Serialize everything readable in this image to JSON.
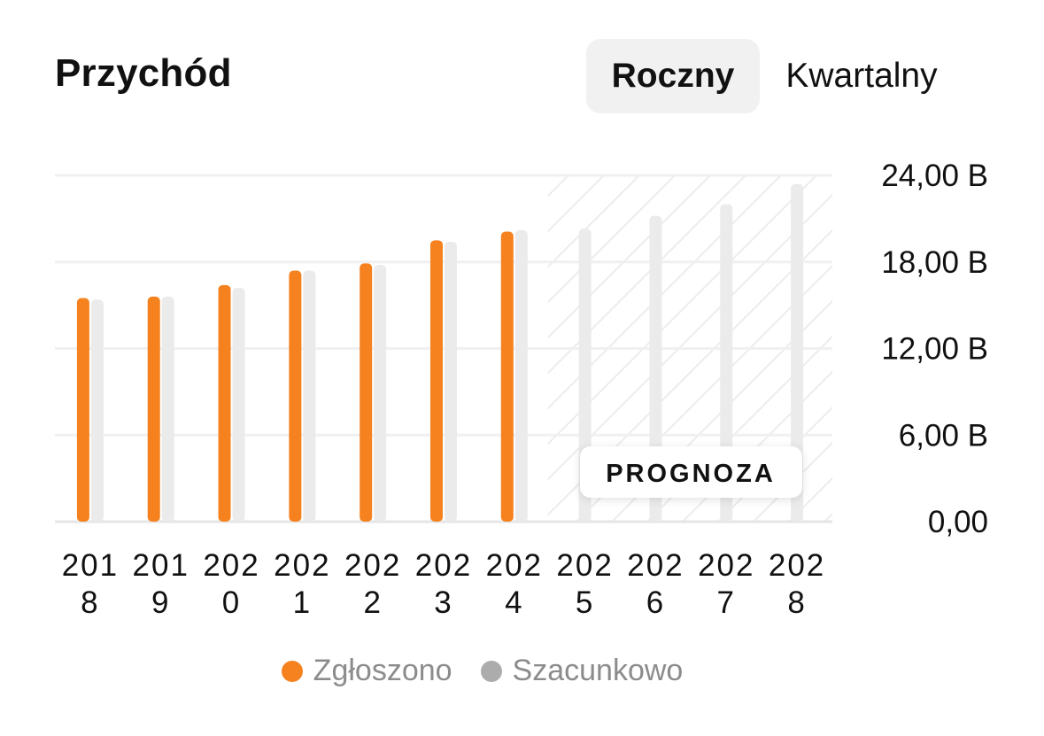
{
  "header": {
    "title": "Przychód",
    "tabs": [
      {
        "label": "Roczny",
        "active": true
      },
      {
        "label": "Kwartalny",
        "active": false
      }
    ]
  },
  "forecast_label": "PROGNOZA",
  "legend": [
    {
      "label": "Zgłoszono",
      "color": "#f5821f"
    },
    {
      "label": "Szacunkowo",
      "color": "#acacac"
    }
  ],
  "chart_data": {
    "type": "bar",
    "categories": [
      "2018",
      "2019",
      "2020",
      "2021",
      "2022",
      "2023",
      "2024",
      "2025",
      "2026",
      "2027",
      "2028"
    ],
    "category_tick_labels": [
      [
        "201",
        "8"
      ],
      [
        "201",
        "9"
      ],
      [
        "202",
        "0"
      ],
      [
        "202",
        "1"
      ],
      [
        "202",
        "2"
      ],
      [
        "202",
        "3"
      ],
      [
        "202",
        "4"
      ],
      [
        "202",
        "5"
      ],
      [
        "202",
        "6"
      ],
      [
        "202",
        "7"
      ],
      [
        "202",
        "8"
      ]
    ],
    "series": [
      {
        "name": "Zgłoszono",
        "color": "#f5821f",
        "values": [
          15.5,
          15.6,
          16.4,
          17.4,
          17.9,
          19.5,
          20.1,
          null,
          null,
          null,
          null
        ]
      },
      {
        "name": "Szacunkowo",
        "color": "#ebebeb",
        "values": [
          15.4,
          15.6,
          16.2,
          17.4,
          17.8,
          19.4,
          20.2,
          20.3,
          21.2,
          22.0,
          23.4
        ]
      }
    ],
    "forecast_start": "2025",
    "ylim": [
      0,
      24
    ],
    "yticks": [
      0,
      6,
      12,
      18,
      24
    ],
    "ytick_labels": [
      "0,00",
      "6,00 B",
      "12,00 B",
      "18,00 B",
      "24,00 B"
    ],
    "yaxis_position": "right",
    "grid": true,
    "legend_position": "bottom"
  }
}
